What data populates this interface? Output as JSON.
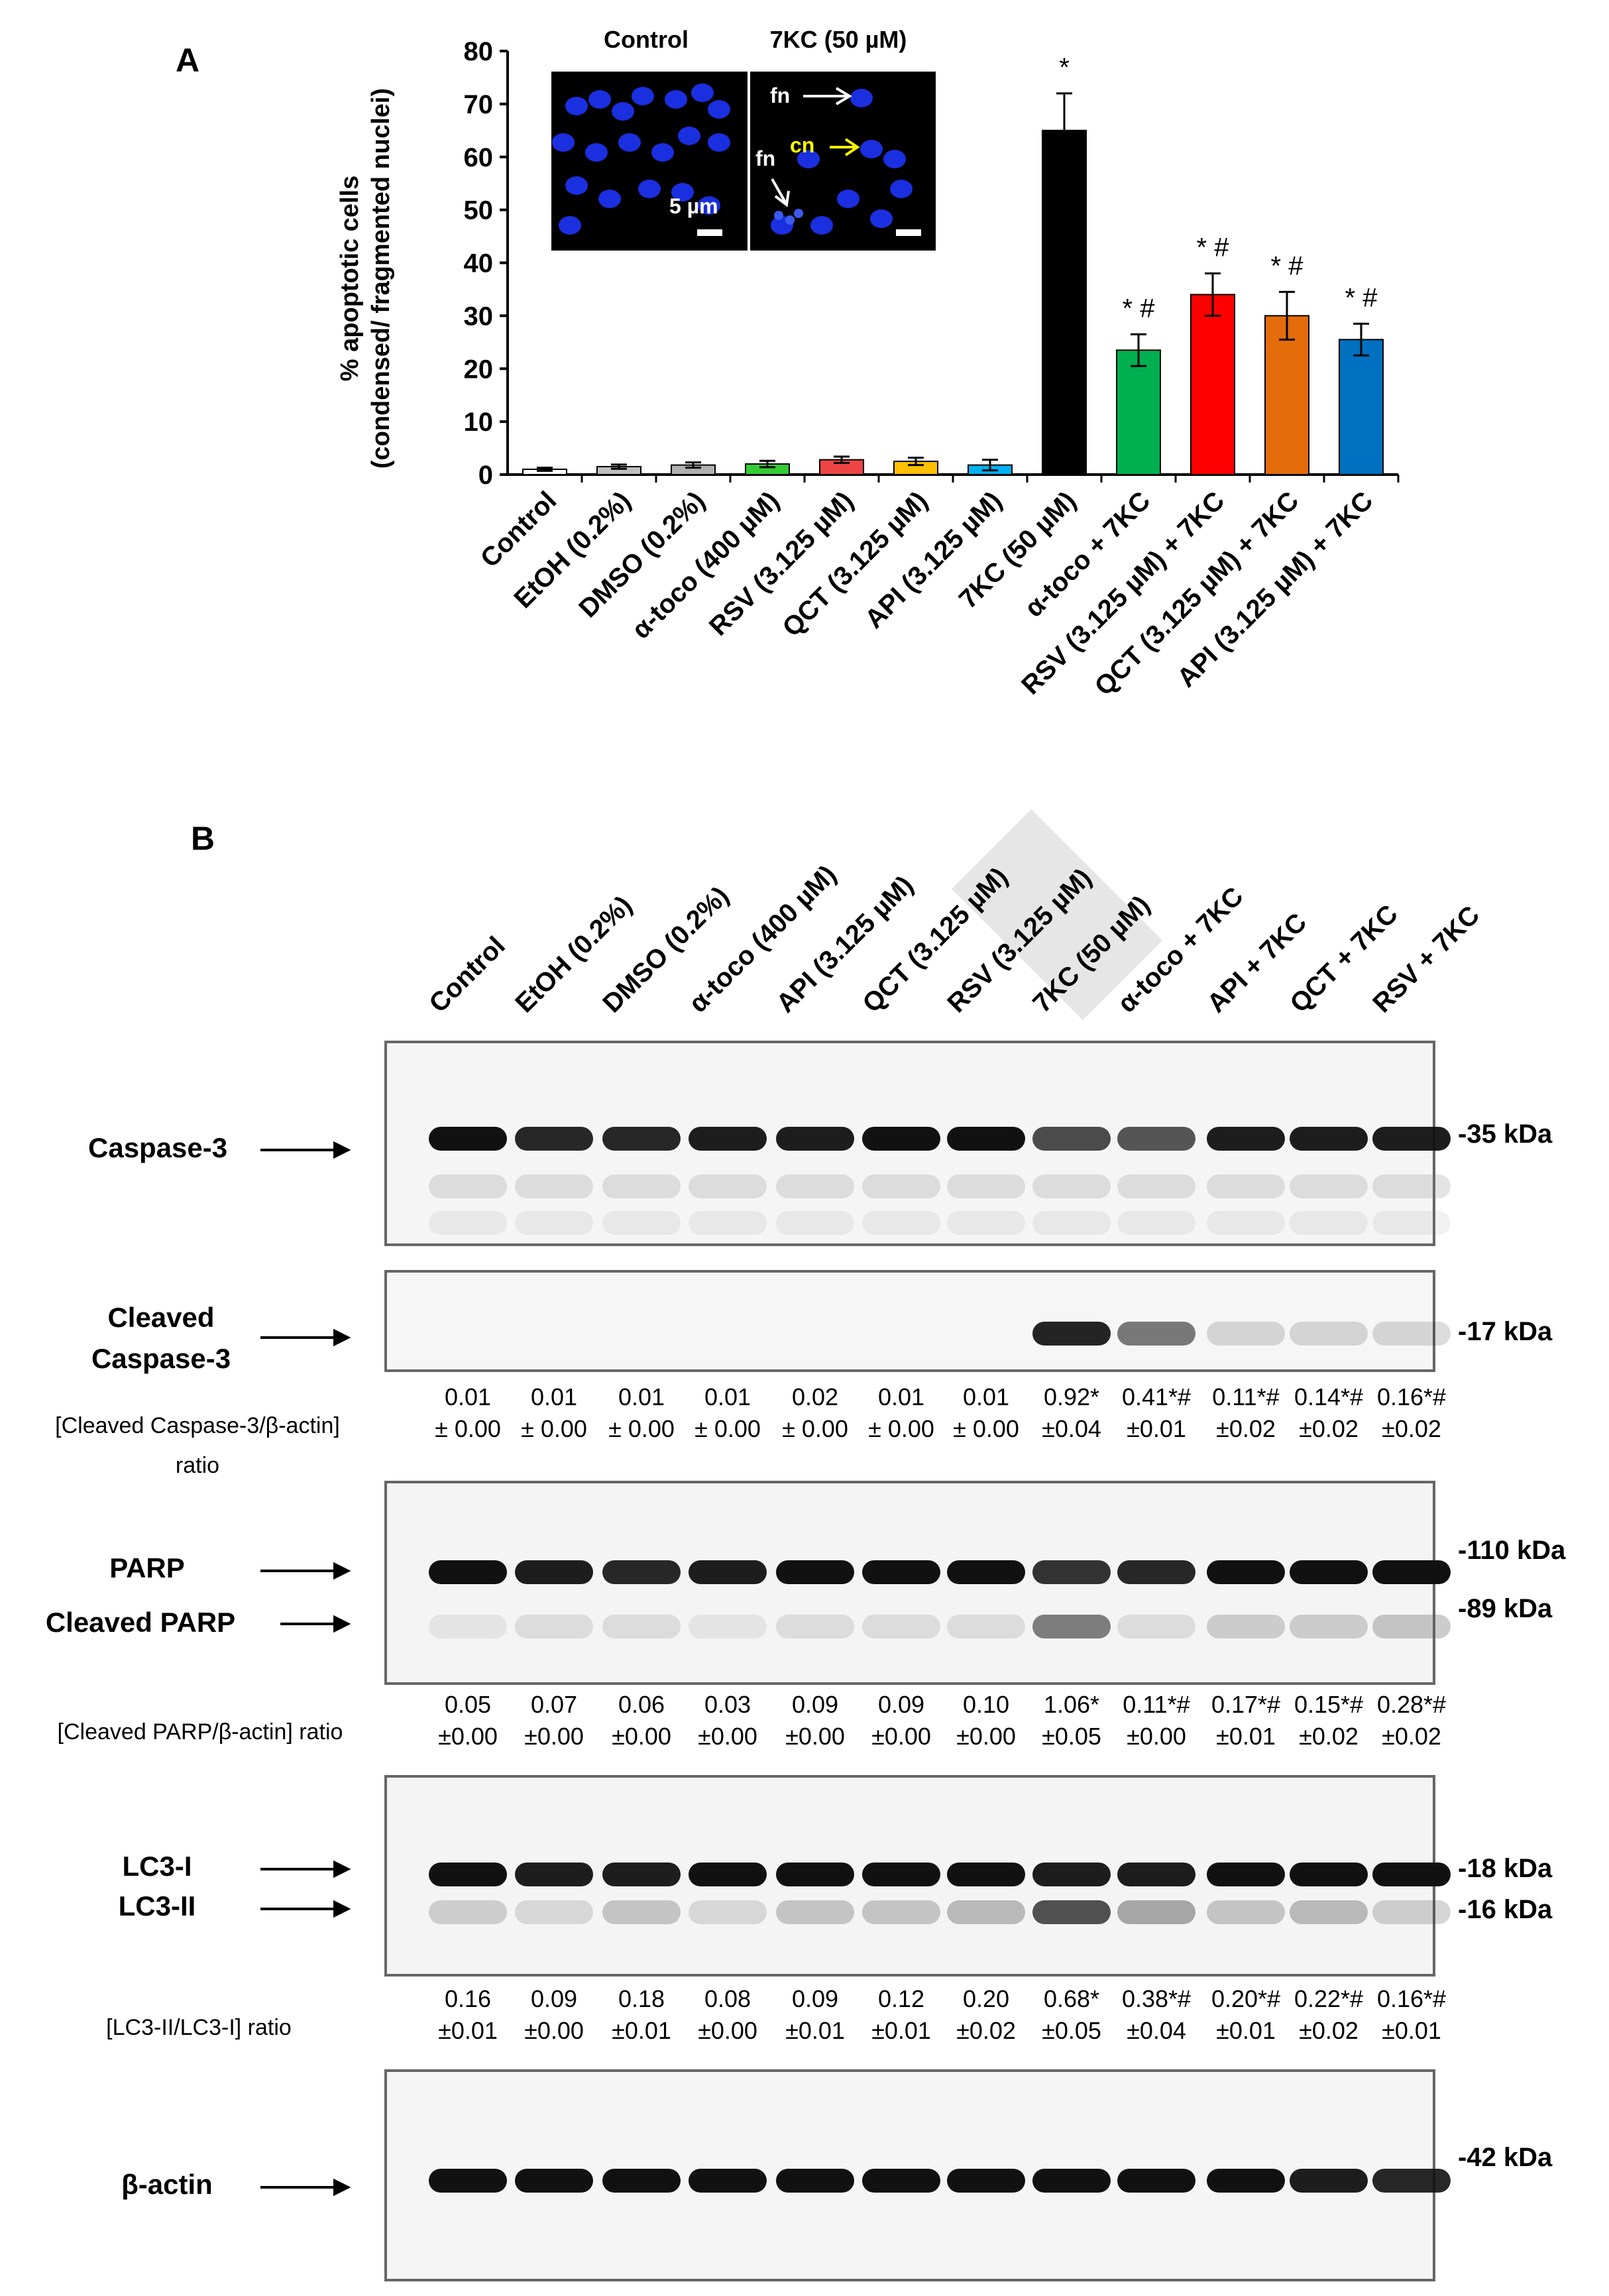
{
  "chart_data": [
    {
      "type": "bar",
      "panel_label": "A",
      "ylabel_line1": "% apoptotic cells",
      "ylabel_line2": "(condensed/ fragmented nuclei)",
      "ylim": [
        0,
        80
      ],
      "yticks": [
        0,
        10,
        20,
        30,
        40,
        50,
        60,
        70,
        80
      ],
      "categories": [
        "Control",
        "EtOH (0.2%)",
        "DMSO (0.2%)",
        "α-toco (400 µM)",
        "RSV (3.125 µM)",
        "QCT (3.125 µM)",
        "API (3.125 µM)",
        "7KC (50 µM)",
        "α-toco + 7KC",
        "RSV (3.125 µM) + 7KC",
        "QCT (3.125 µM) + 7KC",
        "API (3.125 µM) + 7KC"
      ],
      "values": [
        1.0,
        1.5,
        1.8,
        2.0,
        2.8,
        2.5,
        1.8,
        65.0,
        23.5,
        34.0,
        30.0,
        25.5
      ],
      "errors": [
        0.3,
        0.4,
        0.5,
        0.6,
        0.6,
        0.7,
        1.0,
        7.0,
        3.0,
        4.0,
        4.5,
        3.0
      ],
      "colors": [
        "#ffffff",
        "#c0c0c0",
        "#b0b0b0",
        "#33cc33",
        "#ee4444",
        "#ffc000",
        "#00b0f0",
        "#000000",
        "#00b050",
        "#ff0000",
        "#e46c0a",
        "#0070c0"
      ],
      "annotations": [
        "",
        "",
        "",
        "",
        "",
        "",
        "",
        "*",
        "* #",
        "* #",
        "* #",
        "* #"
      ],
      "inset": {
        "label_left": "Control",
        "label_right": "7KC (50 µM)",
        "scale_text": "5 µm",
        "fn_label": "fn",
        "cn_label": "cn"
      }
    },
    {
      "type": "table",
      "panel_label": "B",
      "lanes": [
        "Control",
        "EtOH (0.2%)",
        "DMSO (0.2%)",
        "α-toco (400 µM)",
        "API (3.125 µM)",
        "QCT (3.125 µM)",
        "RSV (3.125 µM)",
        "7KC (50 µM)",
        "α-toco + 7KC",
        "API + 7KC",
        "QCT + 7KC",
        "RSV + 7KC"
      ],
      "blots": {
        "caspase3": {
          "label": "Caspase-3",
          "kda": "-35 kDa"
        },
        "cleaved_caspase3": {
          "label_line1": "Cleaved",
          "label_line2": "Caspase-3",
          "kda": "-17 kDa",
          "ratio_line1": "[Cleaved Caspase-3/β-actin]",
          "ratio_line2": "ratio",
          "values": [
            "0.01",
            "0.01",
            "0.01",
            "0.01",
            "0.02",
            "0.01",
            "0.01",
            "0.92*",
            "0.41*#",
            "0.11*#",
            "0.14*#",
            "0.16*#"
          ],
          "errors": [
            "± 0.00",
            "± 0.00",
            "± 0.00",
            "± 0.00",
            "± 0.00",
            "± 0.00",
            "± 0.00",
            "±0.04",
            "±0.01",
            "±0.02",
            "±0.02",
            "±0.02"
          ]
        },
        "parp": {
          "label": "PARP",
          "label2": "Cleaved PARP",
          "kda": "-110 kDa",
          "kda2": "-89 kDa",
          "ratio_line1": "[Cleaved PARP/β-actin] ratio",
          "values": [
            "0.05",
            "0.07",
            "0.06",
            "0.03",
            "0.09",
            "0.09",
            "0.10",
            "1.06*",
            "0.11*#",
            "0.17*#",
            "0.15*#",
            "0.28*#"
          ],
          "errors": [
            "±0.00",
            "±0.00",
            "±0.00",
            "±0.00",
            "±0.00",
            "±0.00",
            "±0.00",
            "±0.05",
            "±0.00",
            "±0.01",
            "±0.02",
            "±0.02"
          ]
        },
        "lc3": {
          "label": "LC3-I",
          "label2": "LC3-II",
          "kda": "-18 kDa",
          "kda2": "-16 kDa",
          "ratio_line1": "[LC3-II/LC3-I] ratio",
          "values": [
            "0.16",
            "0.09",
            "0.18",
            "0.08",
            "0.09",
            "0.12",
            "0.20",
            "0.68*",
            "0.38*#",
            "0.20*#",
            "0.22*#",
            "0.16*#"
          ],
          "errors": [
            "±0.01",
            "±0.00",
            "±0.01",
            "±0.00",
            "±0.01",
            "±0.01",
            "±0.02",
            "±0.05",
            "±0.04",
            "±0.01",
            "±0.02",
            "±0.01"
          ]
        },
        "actin": {
          "label": "β-actin",
          "kda": "-42 kDa"
        }
      }
    }
  ]
}
